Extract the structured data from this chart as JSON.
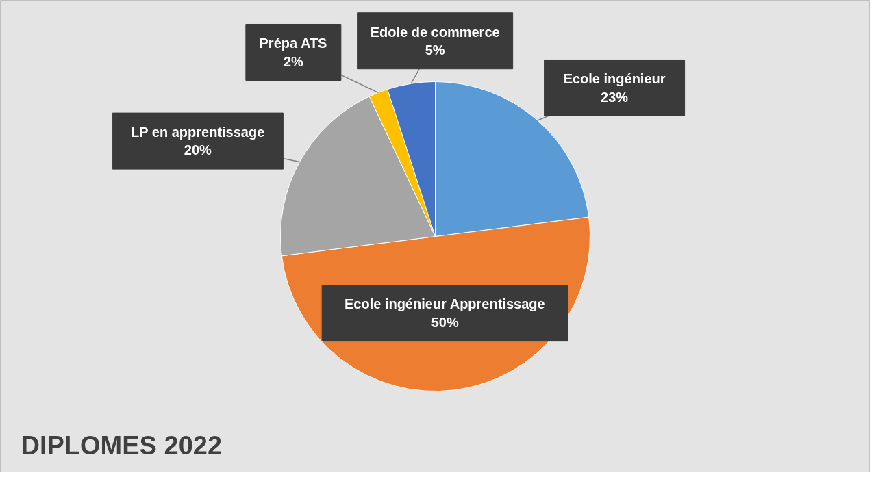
{
  "chart_data": {
    "type": "pie",
    "title": "DIPLOMES 2022",
    "categories": [
      "Ecole ingénieur",
      "Ecole ingénieur Apprentissage",
      "LP en apprentissage",
      "Prépa ATS",
      "Edole de commerce"
    ],
    "values": [
      23,
      50,
      20,
      2,
      5
    ],
    "colors": [
      "#5b9bd5",
      "#ed7d31",
      "#a5a5a5",
      "#ffc000",
      "#4472c4"
    ],
    "value_labels": [
      "23%",
      "50%",
      "20%",
      "2%",
      "5%"
    ]
  }
}
